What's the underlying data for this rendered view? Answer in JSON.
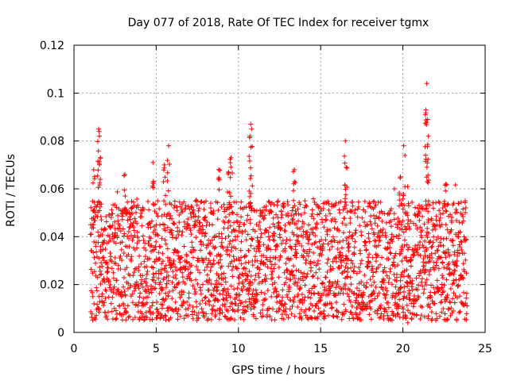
{
  "chart_data": {
    "type": "scatter",
    "title": "Day 077 of 2018, Rate Of TEC Index for receiver tgmx",
    "xlabel": "GPS time / hours",
    "ylabel": "ROTI / TECUs",
    "xlim": [
      0,
      25
    ],
    "ylim": [
      0,
      0.12
    ],
    "xticks": [
      0,
      5,
      10,
      15,
      20,
      25
    ],
    "xtick_labels": [
      "0",
      "5",
      "10",
      "15",
      "20",
      "25"
    ],
    "yticks": [
      0,
      0.02,
      0.04,
      0.06,
      0.08,
      0.1,
      0.12
    ],
    "ytick_labels": [
      "0",
      "0.02",
      "0.04",
      "0.06",
      "0.08",
      "0.1",
      "0.12"
    ],
    "grid": true,
    "marker": "+",
    "marker_color": "#ff0000",
    "series": [
      {
        "name": "ROTI",
        "color": "#ff0000",
        "time_range_hours": [
          1.0,
          23.9
        ],
        "typical_range": [
          0.005,
          0.055
        ],
        "peaks": [
          {
            "x": 1.2,
            "y": 0.068
          },
          {
            "x": 1.5,
            "y": 0.085
          },
          {
            "x": 1.55,
            "y": 0.082
          },
          {
            "x": 1.6,
            "y": 0.073
          },
          {
            "x": 3.1,
            "y": 0.066
          },
          {
            "x": 4.8,
            "y": 0.071
          },
          {
            "x": 5.5,
            "y": 0.07
          },
          {
            "x": 5.75,
            "y": 0.078
          },
          {
            "x": 8.8,
            "y": 0.068
          },
          {
            "x": 9.4,
            "y": 0.067
          },
          {
            "x": 9.55,
            "y": 0.073
          },
          {
            "x": 10.75,
            "y": 0.087
          },
          {
            "x": 10.8,
            "y": 0.085
          },
          {
            "x": 10.7,
            "y": 0.082
          },
          {
            "x": 13.4,
            "y": 0.068
          },
          {
            "x": 16.5,
            "y": 0.08
          },
          {
            "x": 16.55,
            "y": 0.069
          },
          {
            "x": 19.85,
            "y": 0.065
          },
          {
            "x": 20.05,
            "y": 0.078
          },
          {
            "x": 21.45,
            "y": 0.104
          },
          {
            "x": 21.4,
            "y": 0.093
          },
          {
            "x": 21.5,
            "y": 0.089
          },
          {
            "x": 21.55,
            "y": 0.082
          },
          {
            "x": 22.6,
            "y": 0.062
          },
          {
            "x": 20.3,
            "y": 0.004
          }
        ]
      }
    ]
  }
}
